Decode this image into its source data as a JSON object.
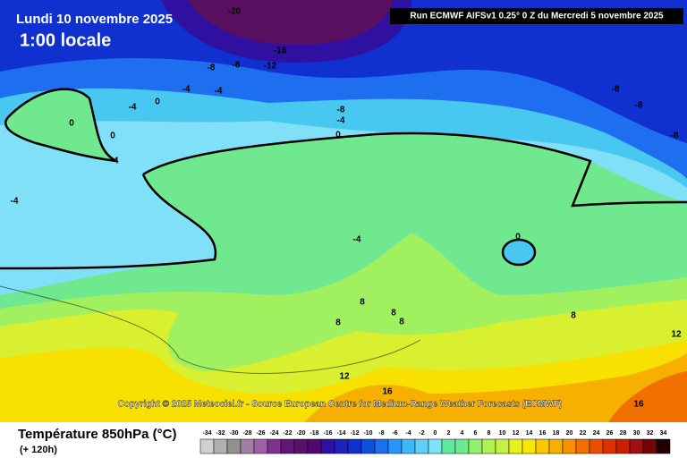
{
  "header": {
    "title": "Lundi 10 novembre 2025",
    "subtitle": "1:00 locale",
    "run": "Run ECMWF AIFSv1 0.25° 0 Z du Mercredi 5 novembre 2025"
  },
  "copyright": "Copyright © 2025 Meteociel.fr - Source European Centre for Medium-Range Weather Forecasts (ECMWF)",
  "contour_labels": [
    -20,
    -16,
    -8,
    -8,
    -12,
    -4,
    -4,
    0,
    -4,
    0,
    0,
    -4,
    -8,
    -4,
    0,
    -8,
    -8,
    -8,
    -4,
    -4,
    0,
    8,
    8,
    8,
    8,
    8,
    12,
    12,
    16,
    16
  ],
  "legend": {
    "title": "Température 850hPa (°C)",
    "lead_time": "(+ 120h)",
    "ticks": [
      -34,
      -32,
      -30,
      -28,
      -26,
      -24,
      -22,
      -20,
      -18,
      -16,
      -14,
      -12,
      -10,
      -8,
      -6,
      -4,
      -2,
      0,
      2,
      4,
      6,
      8,
      10,
      12,
      14,
      16,
      18,
      20,
      22,
      24,
      26,
      28,
      30,
      32,
      34
    ],
    "colors": [
      "#d0d0d0",
      "#b0b0b0",
      "#909090",
      "#a080a0",
      "#a060a8",
      "#803090",
      "#601878",
      "#58106a",
      "#500870",
      "#3010a0",
      "#2020c0",
      "#1030d0",
      "#1050e0",
      "#1e6ef0",
      "#2896f8",
      "#40b8f8",
      "#60d0f8",
      "#80e0f8",
      "#60e8a0",
      "#70e890",
      "#90f070",
      "#b0f050",
      "#c8f040",
      "#e8f020",
      "#f8e800",
      "#f8c800",
      "#f8b000",
      "#f89000",
      "#f07000",
      "#e85000",
      "#e03000",
      "#c82000",
      "#a01010",
      "#700808",
      "#200000"
    ]
  }
}
